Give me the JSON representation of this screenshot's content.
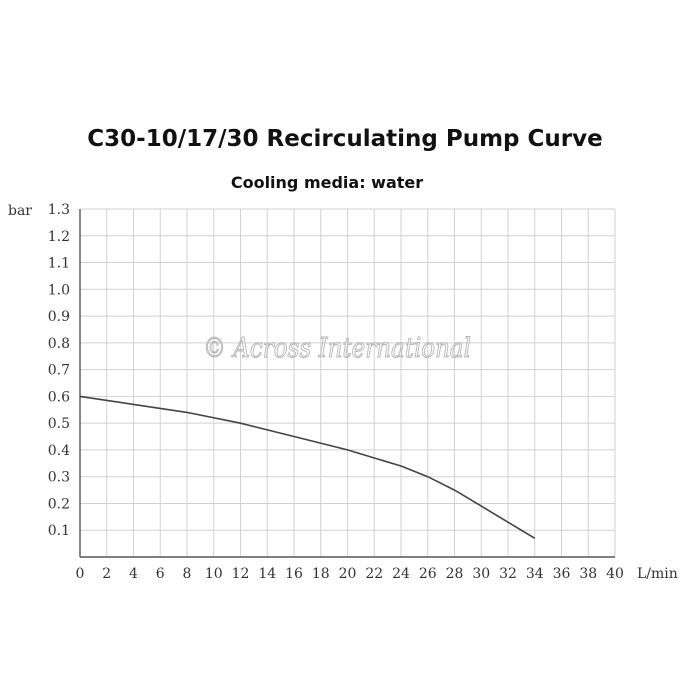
{
  "watermark": "© Across International",
  "chart_data": {
    "type": "line",
    "title": "C30-10/17/30 Recirculating Pump Curve",
    "subtitle": "Cooling media: water",
    "xlabel": "L/min",
    "ylabel": "bar",
    "xlim": [
      0,
      40
    ],
    "ylim": [
      0,
      1.3
    ],
    "x_ticks": [
      "0",
      "2",
      "4",
      "6",
      "8",
      "10",
      "12",
      "14",
      "16",
      "18",
      "20",
      "22",
      "24",
      "26",
      "28",
      "30",
      "32",
      "34",
      "36",
      "38",
      "40"
    ],
    "y_ticks": [
      "0.1",
      "0.2",
      "0.3",
      "0.4",
      "0.5",
      "0.6",
      "0.7",
      "0.8",
      "0.9",
      "1.0",
      "1.1",
      "1.2",
      "1.3"
    ],
    "x_tick_values": [
      0,
      2,
      4,
      6,
      8,
      10,
      12,
      14,
      16,
      18,
      20,
      22,
      24,
      26,
      28,
      30,
      32,
      34,
      36,
      38,
      40
    ],
    "y_tick_values": [
      0.1,
      0.2,
      0.3,
      0.4,
      0.5,
      0.6,
      0.7,
      0.8,
      0.9,
      1.0,
      1.1,
      1.2,
      1.3
    ],
    "grid": true,
    "series": [
      {
        "x": [
          0,
          4,
          8,
          12,
          16,
          20,
          24,
          26,
          28,
          30,
          32,
          34
        ],
        "y": [
          0.6,
          0.57,
          0.54,
          0.5,
          0.45,
          0.4,
          0.34,
          0.3,
          0.25,
          0.19,
          0.13,
          0.07
        ]
      }
    ],
    "colors": {
      "curve": "#444444",
      "grid": "#d2d2d2",
      "axis": "#555555"
    }
  }
}
